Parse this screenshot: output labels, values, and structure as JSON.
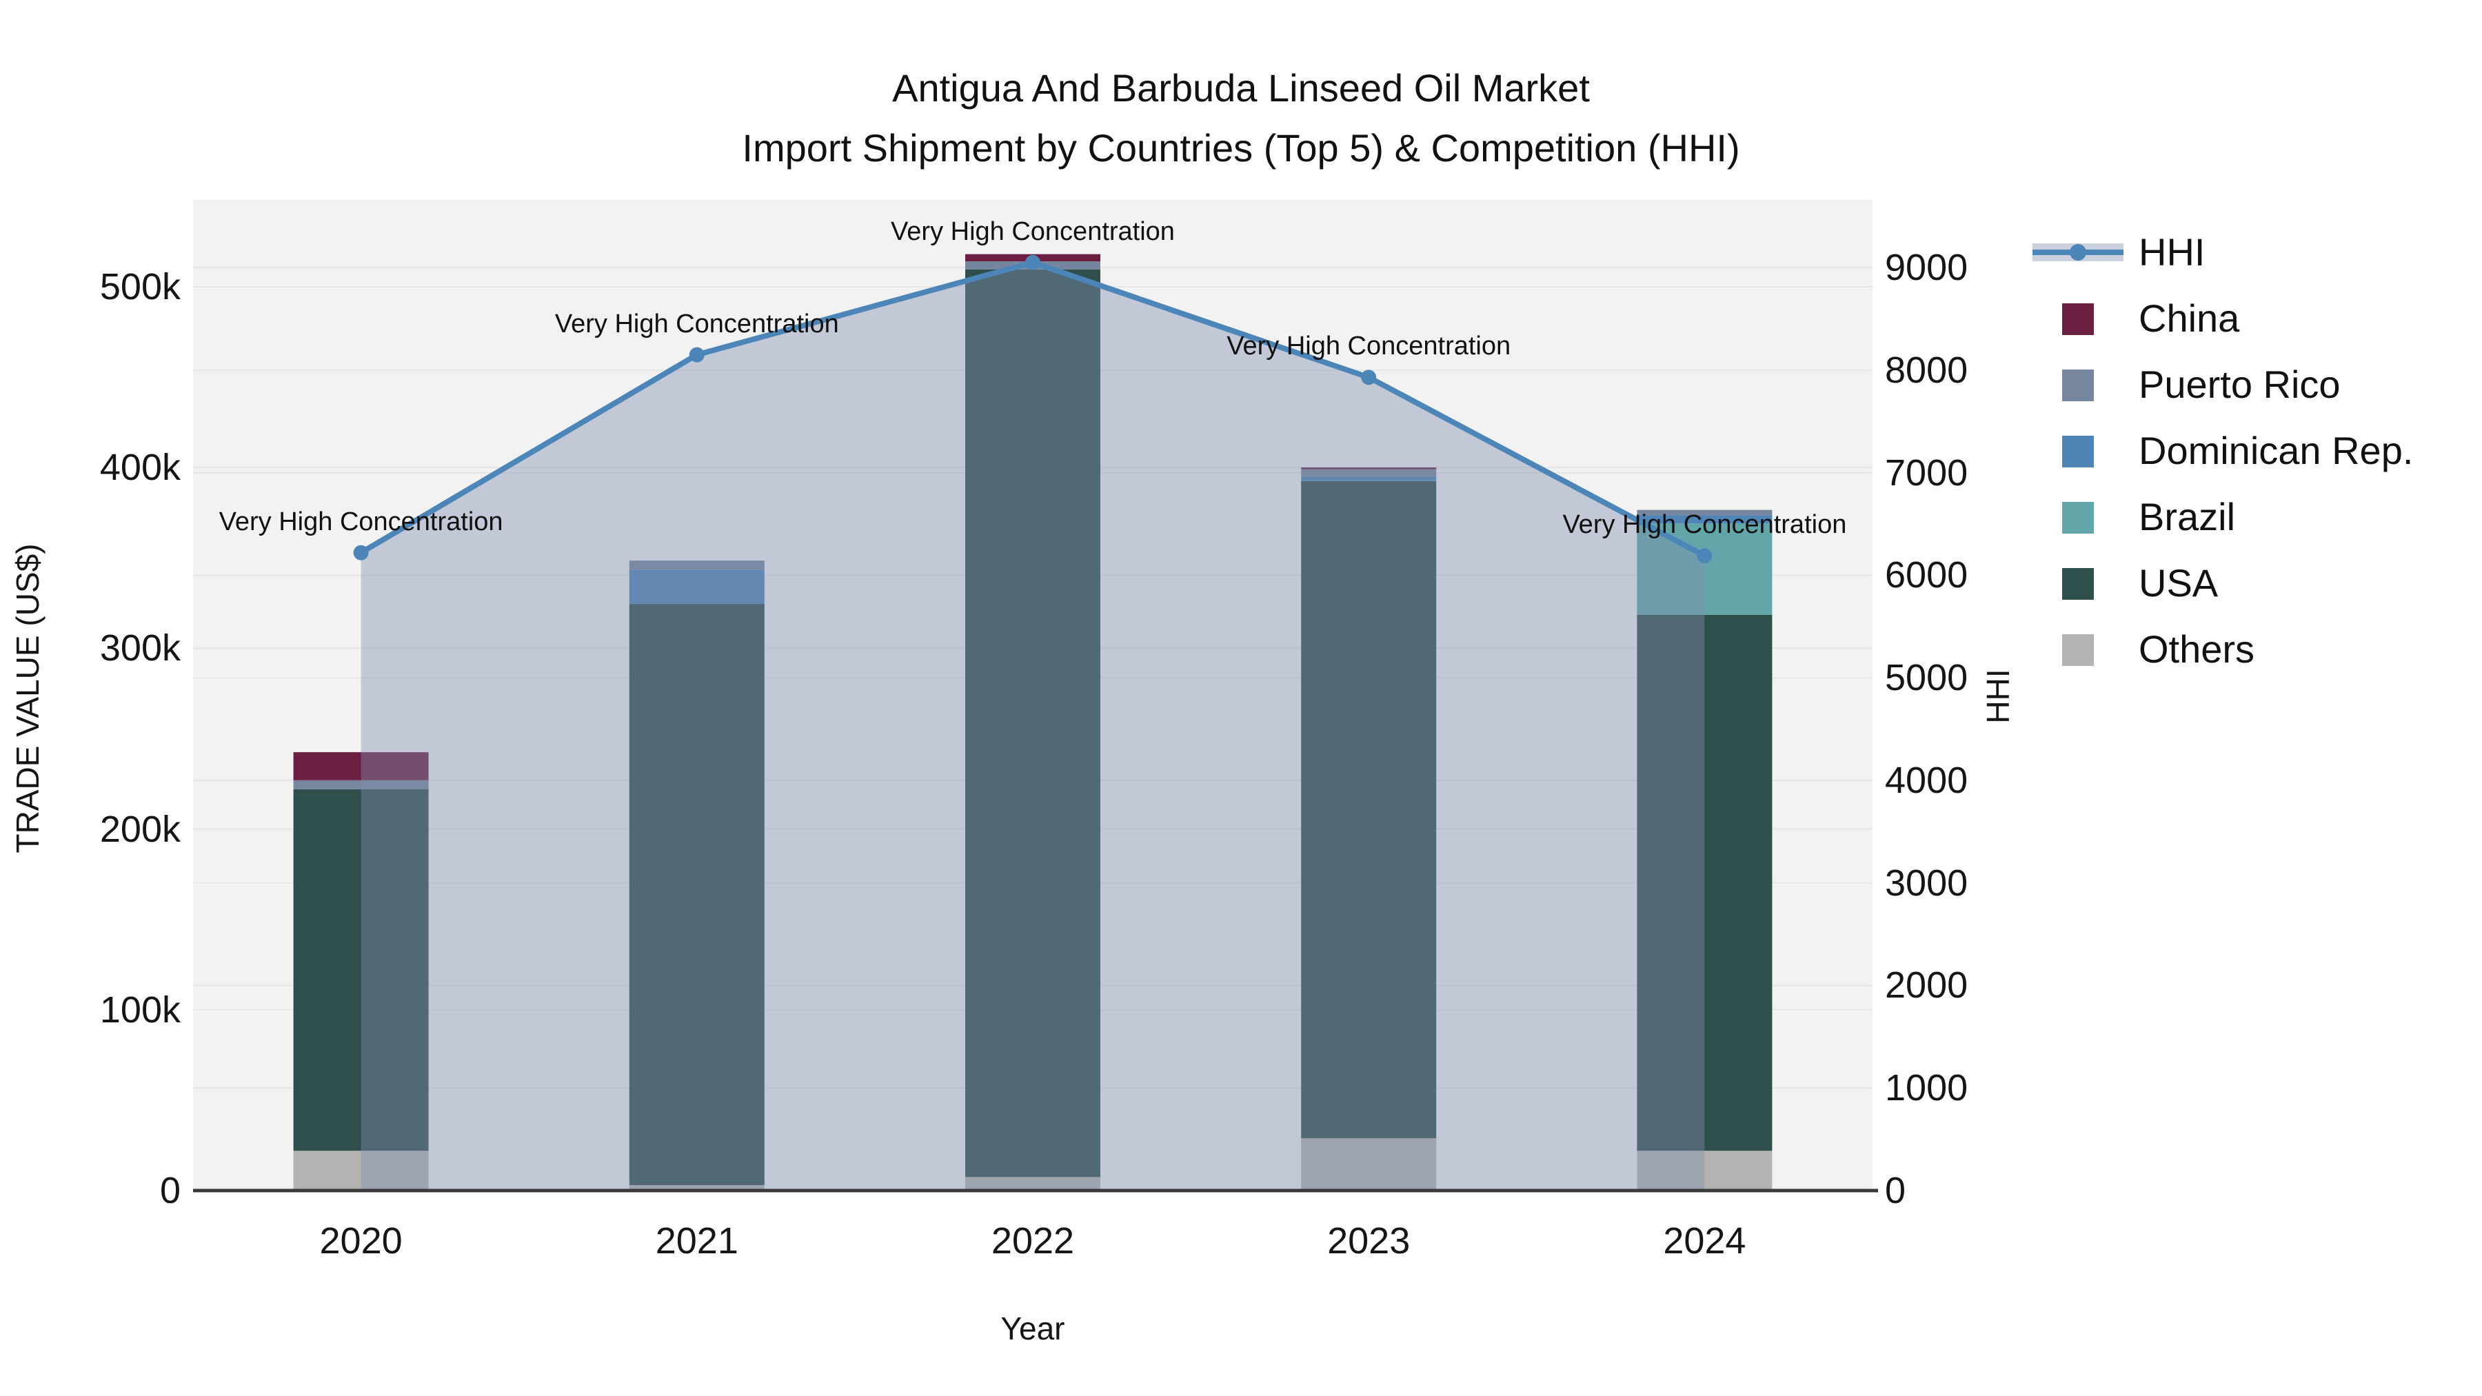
{
  "title": {
    "line1": "Antigua And Barbuda Linseed Oil Market",
    "line2": "Import Shipment by Countries (Top 5) & Competition (HHI)"
  },
  "axes": {
    "x": {
      "title": "Year",
      "categories": [
        "2020",
        "2021",
        "2022",
        "2023",
        "2024"
      ]
    },
    "y_left": {
      "title": "TRADE VALUE (US$)",
      "ticks": [
        {
          "label": "0",
          "value": 0
        },
        {
          "label": "100k",
          "value": 100000
        },
        {
          "label": "200k",
          "value": 200000
        },
        {
          "label": "300k",
          "value": 300000
        },
        {
          "label": "400k",
          "value": 400000
        },
        {
          "label": "500k",
          "value": 500000
        }
      ]
    },
    "y_right": {
      "title": "HHI",
      "ticks": [
        {
          "label": "0",
          "value": 0
        },
        {
          "label": "1000",
          "value": 1000
        },
        {
          "label": "2000",
          "value": 2000
        },
        {
          "label": "3000",
          "value": 3000
        },
        {
          "label": "4000",
          "value": 4000
        },
        {
          "label": "5000",
          "value": 5000
        },
        {
          "label": "6000",
          "value": 6000
        },
        {
          "label": "7000",
          "value": 7000
        },
        {
          "label": "8000",
          "value": 8000
        },
        {
          "label": "9000",
          "value": 9000
        }
      ]
    }
  },
  "legend": [
    {
      "label": "HHI",
      "swatch": "line"
    },
    {
      "label": "China",
      "swatch": "China"
    },
    {
      "label": "Puerto Rico",
      "swatch": "Puerto Rico"
    },
    {
      "label": "Dominican Rep.",
      "swatch": "Dominican Rep."
    },
    {
      "label": "Brazil",
      "swatch": "Brazil"
    },
    {
      "label": "USA",
      "swatch": "USA"
    },
    {
      "label": "Others",
      "swatch": "Others"
    }
  ],
  "annotations": [
    {
      "x": "2020",
      "text": "Very High Concentration"
    },
    {
      "x": "2021",
      "text": "Very High Concentration"
    },
    {
      "x": "2022",
      "text": "Very High Concentration"
    },
    {
      "x": "2023",
      "text": "Very High Concentration"
    },
    {
      "x": "2024",
      "text": "Very High Concentration"
    }
  ],
  "colors": {
    "HHI": "#4C86B8",
    "China": "#6B1F41",
    "Puerto Rico": "#76869E",
    "Dominican Rep.": "#4E84B6",
    "Brazil": "#63A6A9",
    "USA": "#2E4F4B",
    "Others": "#B3B3B1",
    "hhi_area": "rgba(128,144,174,0.42)",
    "plot_bg": "#F2F2F2",
    "grid": "#E6E6E6",
    "axis_line": "#3A3A3A",
    "text": "#111111"
  },
  "chart_data": {
    "type": "bar+line",
    "title": "Antigua And Barbuda Linseed Oil Market — Import Shipment by Countries (Top 5) & Competition (HHI)",
    "categories": [
      "2020",
      "2021",
      "2022",
      "2023",
      "2024"
    ],
    "bar_value_unit": "US$ trade value",
    "stack_order": "bottom-to-top",
    "series": [
      {
        "name": "Others",
        "values": [
          22000,
          3000,
          7500,
          29000,
          22000
        ]
      },
      {
        "name": "USA",
        "values": [
          200000,
          321500,
          502000,
          363500,
          296500
        ]
      },
      {
        "name": "Brazil",
        "values": [
          0,
          0,
          0,
          0,
          50500
        ]
      },
      {
        "name": "Dominican Rep.",
        "values": [
          0,
          19000,
          0,
          2500,
          4500
        ]
      },
      {
        "name": "Puerto Rico",
        "values": [
          5000,
          5000,
          4500,
          4000,
          3000
        ]
      },
      {
        "name": "China",
        "values": [
          15500,
          0,
          4000,
          1000,
          0
        ]
      }
    ],
    "bar_totals": [
      242500,
      348500,
      518000,
      400000,
      376500
    ],
    "line_series": {
      "name": "HHI",
      "axis": "right",
      "values": [
        6220,
        8150,
        9050,
        7930,
        6190
      ]
    },
    "xlabel": "Year",
    "ylabel_left": "TRADE VALUE (US$)",
    "ylabel_right": "HHI",
    "ylim_left": [
      0,
      548000
    ],
    "ylim_right": [
      0,
      9660
    ],
    "grid": true,
    "legend_position": "right"
  }
}
